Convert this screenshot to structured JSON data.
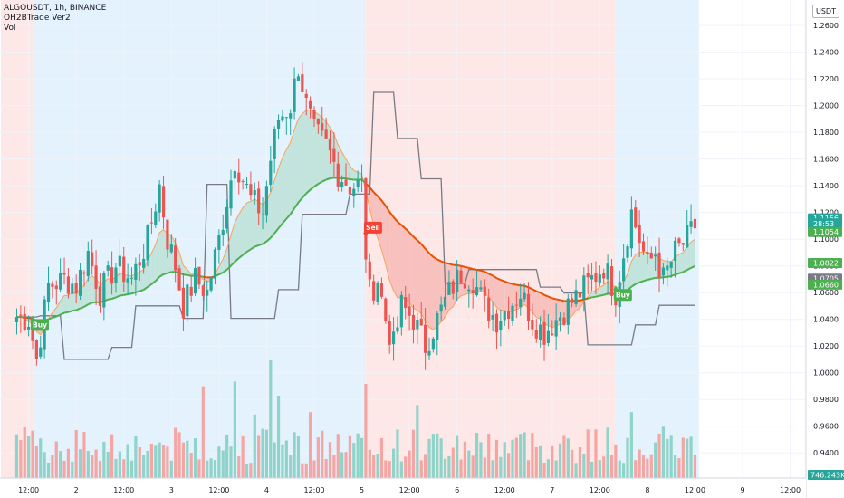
{
  "legend": {
    "symbol": "ALGOUSDT, 1h, BINANCE",
    "indicator": "OH2BTrade Ver2",
    "volume": "Vol"
  },
  "currency": "USDT",
  "colors": {
    "up": "#26a69a",
    "down": "#ef5350",
    "upFill": "#b7dfd2",
    "downFill": "#f6b4b0",
    "buyZone": "#e3f2fd",
    "sellZone": "#fde8e7",
    "signalBuy": "#4caf50",
    "signalSell": "#f44336",
    "trail": "#787b86"
  },
  "chart_data": {
    "type": "candlestick",
    "symbol": "ALGOUSDT",
    "interval": "1h",
    "exchange": "BINANCE",
    "y_axis": {
      "ylim": [
        0.93,
        1.275
      ],
      "ticks": [
        "1.2600",
        "1.2400",
        "1.2200",
        "1.2000",
        "1.1800",
        "1.1600",
        "1.1400",
        "1.1200",
        "1.1000",
        "1.0800",
        "1.0600",
        "1.0400",
        "1.0200",
        "1.0000",
        "0.9800",
        "0.9600",
        "0.9400"
      ]
    },
    "x_axis": {
      "ticks": [
        {
          "label": "12:00",
          "bar": 3
        },
        {
          "label": "2",
          "bar": 15
        },
        {
          "label": "12:00",
          "bar": 27
        },
        {
          "label": "3",
          "bar": 39
        },
        {
          "label": "12:00",
          "bar": 51
        },
        {
          "label": "4",
          "bar": 63
        },
        {
          "label": "12:00",
          "bar": 75
        },
        {
          "label": "5",
          "bar": 87
        },
        {
          "label": "12:00",
          "bar": 99
        },
        {
          "label": "6",
          "bar": 111
        },
        {
          "label": "12:00",
          "bar": 123
        },
        {
          "label": "7",
          "bar": 135
        },
        {
          "label": "12:00",
          "bar": 147
        },
        {
          "label": "8",
          "bar": 159
        },
        {
          "label": "12:00",
          "bar": 171
        },
        {
          "label": "9",
          "bar": 183
        },
        {
          "label": "12:00",
          "bar": 195
        }
      ],
      "bars_per_day": 24
    },
    "zones": [
      {
        "signal": "sell",
        "from_bar": -4,
        "to_bar": 4
      },
      {
        "signal": "buy",
        "from_bar": 4,
        "to_bar": 88
      },
      {
        "signal": "sell",
        "from_bar": 88,
        "to_bar": 151
      },
      {
        "signal": "buy",
        "from_bar": 151,
        "to_bar": 172
      }
    ],
    "signals": [
      {
        "label": "Buy",
        "bar": 4,
        "price": 1.045
      },
      {
        "label": "Sell",
        "bar": 88,
        "price": 1.0995
      },
      {
        "label": "Buy",
        "bar": 151,
        "price": 1.0674
      }
    ],
    "keypoints": [
      [
        0,
        1.042
      ],
      [
        3,
        1.04
      ],
      [
        5,
        1.01
      ],
      [
        8,
        1.065
      ],
      [
        12,
        1.07
      ],
      [
        15,
        1.065
      ],
      [
        18,
        1.09
      ],
      [
        21,
        1.06
      ],
      [
        25,
        1.08
      ],
      [
        29,
        1.07
      ],
      [
        33,
        1.1
      ],
      [
        36,
        1.14
      ],
      [
        38,
        1.1
      ],
      [
        40,
        1.08
      ],
      [
        42,
        1.05
      ],
      [
        45,
        1.07
      ],
      [
        48,
        1.06
      ],
      [
        51,
        1.1
      ],
      [
        55,
        1.16
      ],
      [
        59,
        1.13
      ],
      [
        62,
        1.12
      ],
      [
        64,
        1.16
      ],
      [
        66,
        1.19
      ],
      [
        69,
        1.2
      ],
      [
        71,
        1.23
      ],
      [
        73,
        1.2
      ],
      [
        75,
        1.18
      ],
      [
        78,
        1.17
      ],
      [
        81,
        1.15
      ],
      [
        84,
        1.14
      ],
      [
        87,
        1.14
      ],
      [
        88,
        1.09
      ],
      [
        89,
        1.06
      ],
      [
        91,
        1.07
      ],
      [
        93,
        1.04
      ],
      [
        95,
        1.02
      ],
      [
        97,
        1.05
      ],
      [
        100,
        1.04
      ],
      [
        103,
        1.02
      ],
      [
        106,
        1.04
      ],
      [
        109,
        1.06
      ],
      [
        112,
        1.075
      ],
      [
        115,
        1.07
      ],
      [
        118,
        1.05
      ],
      [
        121,
        1.04
      ],
      [
        124,
        1.05
      ],
      [
        127,
        1.06
      ],
      [
        130,
        1.04
      ],
      [
        133,
        1.03
      ],
      [
        136,
        1.04
      ],
      [
        139,
        1.05
      ],
      [
        142,
        1.06
      ],
      [
        145,
        1.07
      ],
      [
        148,
        1.08
      ],
      [
        151,
        1.06
      ],
      [
        153,
        1.09
      ],
      [
        155,
        1.12
      ],
      [
        157,
        1.1
      ],
      [
        159,
        1.08
      ],
      [
        161,
        1.09
      ],
      [
        163,
        1.07
      ],
      [
        166,
        1.09
      ],
      [
        169,
        1.1
      ],
      [
        171,
        1.11
      ]
    ],
    "last_bar": 171,
    "price_labels": [
      {
        "value": "1.1156",
        "color": "#26a69a",
        "price": 1.1156
      },
      {
        "value": "28:53",
        "color": "#26a69a",
        "price": 1.1118
      },
      {
        "value": "1.1054",
        "color": "#4caf50",
        "price": 1.1054
      },
      {
        "value": "1.0822",
        "color": "#4caf50",
        "price": 1.0822
      },
      {
        "value": "1.0705",
        "color": "#787b86",
        "price": 1.0705
      },
      {
        "value": "1.0660",
        "color": "#4caf50",
        "price": 1.066
      }
    ],
    "volume": {
      "last_label": "746.243K",
      "last_color": "#26a69a",
      "max": 1000
    }
  }
}
